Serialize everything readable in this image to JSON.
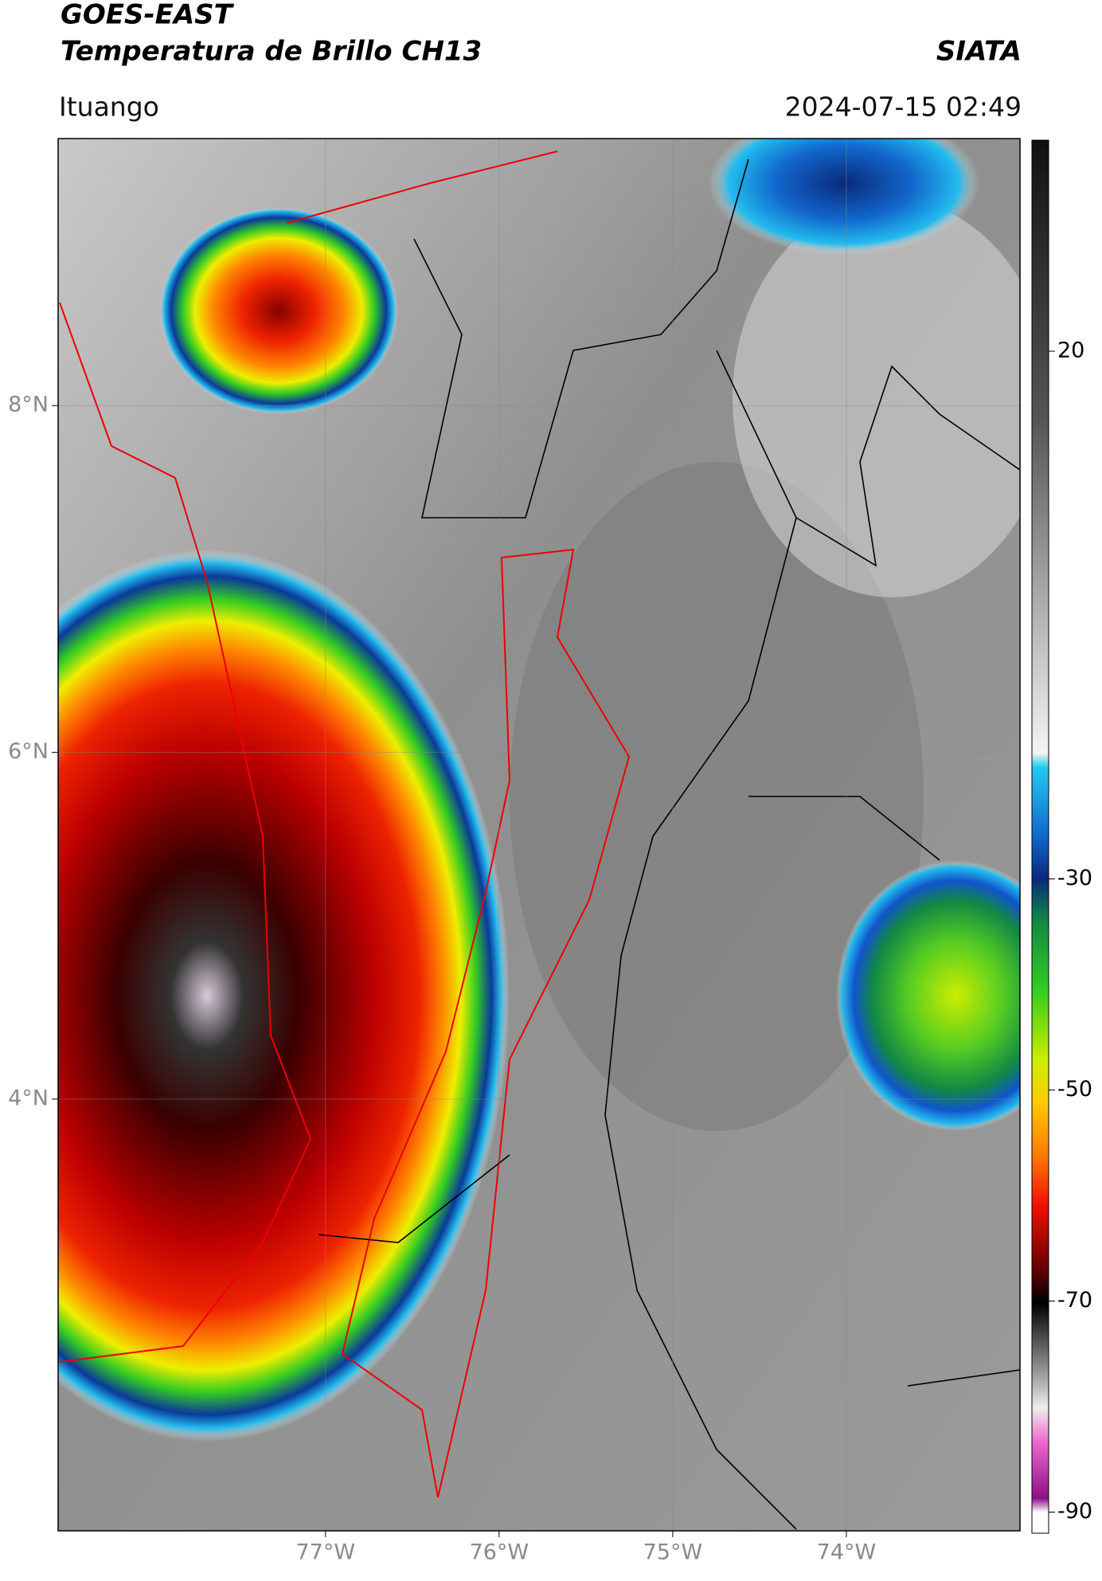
{
  "header": {
    "title": "GOES-EAST",
    "subtitle": "Temperatura de Brillo CH13",
    "organization": "SIATA",
    "location": "Ituango",
    "datetime": "2024-07-15 02:49"
  },
  "map": {
    "xlim": [
      -78.54,
      -73.0
    ],
    "ylim": [
      1.51,
      9.54
    ],
    "xticks": [
      {
        "value": -77,
        "label": "77°W"
      },
      {
        "value": -76,
        "label": "76°W"
      },
      {
        "value": -75,
        "label": "75°W"
      },
      {
        "value": -74,
        "label": "74°W"
      }
    ],
    "yticks": [
      {
        "value": 8,
        "label": "8°N"
      },
      {
        "value": 6,
        "label": "6°N"
      },
      {
        "value": 4,
        "label": "4°N"
      }
    ],
    "grid": true
  },
  "colorbar": {
    "lim": [
      -92,
      40
    ],
    "ticks": [
      20,
      -30,
      -50,
      -70,
      -90
    ]
  }
}
